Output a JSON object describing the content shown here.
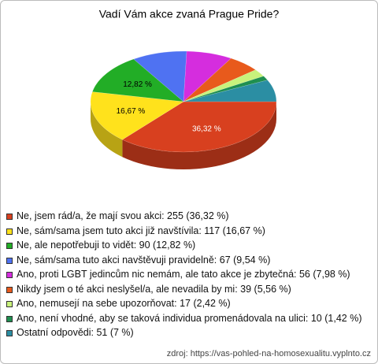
{
  "chart_data": {
    "type": "pie3d",
    "title": "Vadí Vám akce zvaná Prague Pride?",
    "categories": [
      "Ne, jsem rád/a, že mají svou akci: 255 (36,32 %)",
      "Ne, sám/sama jsem tuto akci již navštívila: 117 (16,67 %)",
      "Ne, ale nepotřebuji to vidět: 90 (12,82 %)",
      "Ne, sám/sama tuto akci navštěvuji pravidelně: 67 (9,54 %)",
      "Ano, proti LGBT jedincům nic nemám, ale tato akce je zbytečná: 56 (7,98 %)",
      "Nikdy jsem o té akci neslyšel/a, ale nevadila by mi: 39 (5,56 %)",
      "Ano, nemusejí na sebe upozorňovat: 17 (2,42 %)",
      "Ano, není vhodné, aby se taková individua promenádovala na ulici: 10 (1,42 %)",
      "Ostatní odpovědi: 51 (7 %)"
    ],
    "values": [
      36.32,
      16.67,
      12.82,
      9.54,
      7.98,
      5.56,
      2.42,
      1.42,
      7
    ],
    "value_labels": [
      "36,32 %",
      "16,67 %",
      "12,82 %",
      null,
      null,
      null,
      null,
      null,
      null
    ],
    "colors": [
      "#d8401f",
      "#ffe21c",
      "#22ad26",
      "#4f72f2",
      "#d52dde",
      "#e85a1c",
      "#c8f27c",
      "#1f8f50",
      "#2b8ea3"
    ],
    "source": "zdroj: https://vas-pohled-na-homosexualitu.vyplnto.cz"
  }
}
